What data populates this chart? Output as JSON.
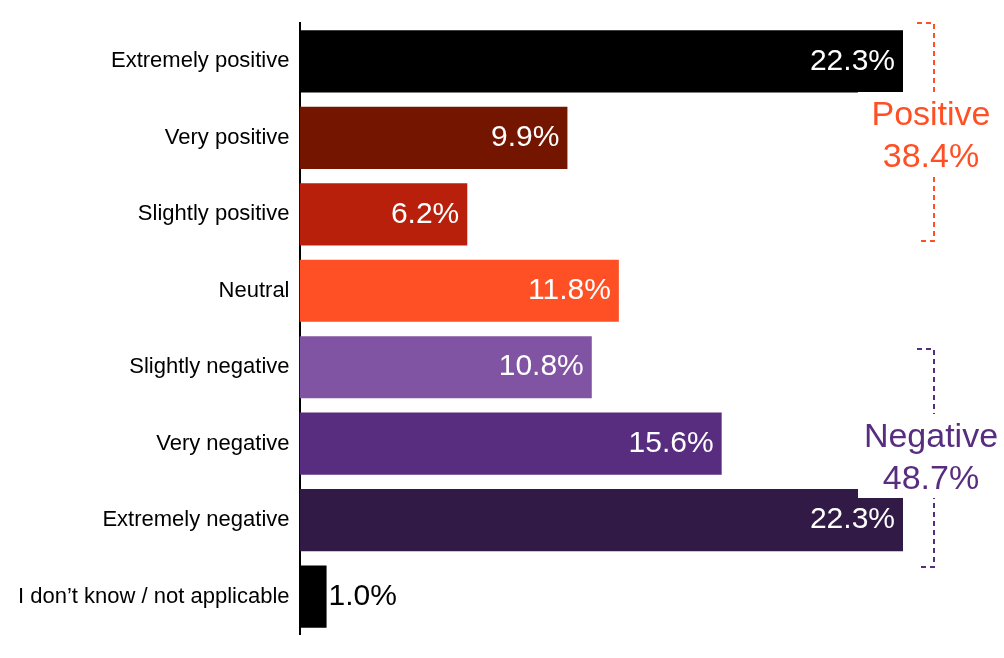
{
  "chart_data": {
    "type": "bar",
    "orientation": "horizontal",
    "categories": [
      "Extremely positive",
      "Very positive",
      "Slightly positive",
      "Neutral",
      "Slightly negative",
      "Very negative",
      "Extremely negative",
      "I don’t know / not applicable"
    ],
    "values": [
      22.3,
      9.9,
      6.2,
      11.8,
      10.8,
      15.6,
      22.3,
      1.0
    ],
    "colors": [
      "#000000",
      "#741500",
      "#b8200c",
      "#ff4f24",
      "#8054a3",
      "#582d7f",
      "#311a45",
      "#000000"
    ],
    "value_labels": [
      "22.3%",
      "9.9%",
      "6.2%",
      "11.8%",
      "10.8%",
      "15.6%",
      "22.3%",
      "1.0%"
    ],
    "annotations": [
      "Positive 38.4%",
      "Negative 48.7%"
    ],
    "grid": false,
    "legend": false
  }
}
